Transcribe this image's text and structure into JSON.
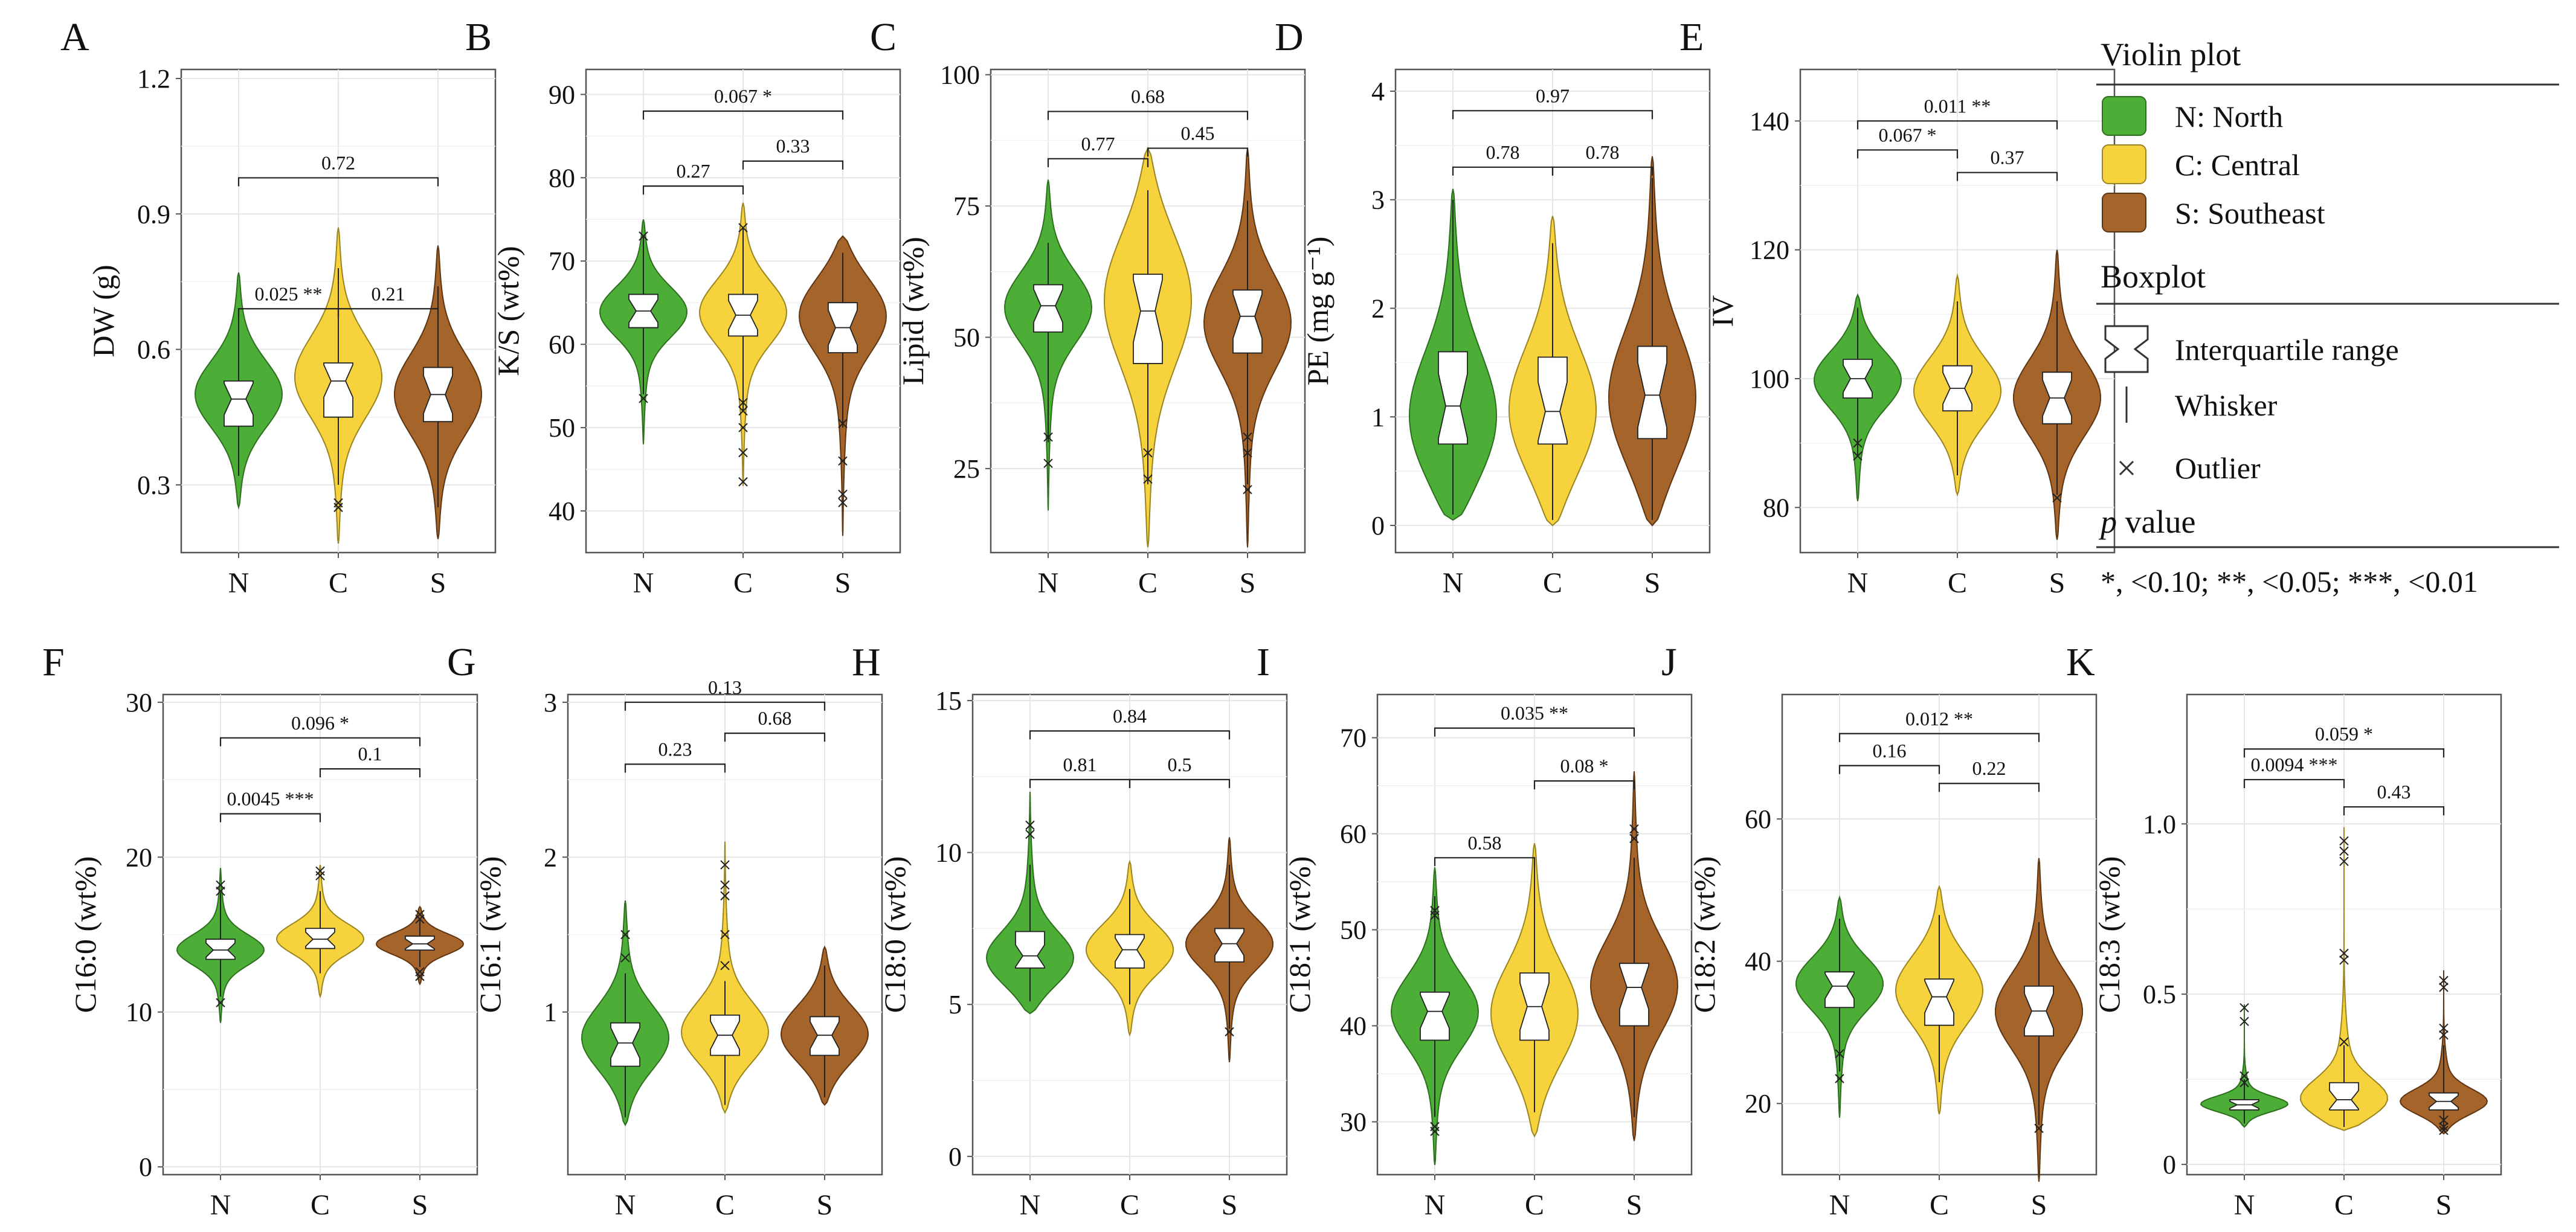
{
  "colors": {
    "N": "#4cae36",
    "C": "#f6d23d",
    "S": "#a5642a",
    "frame": "#555555",
    "grid": "#e6e6e6",
    "text": "#111111"
  },
  "legend": {
    "violin_title": "Violin plot",
    "groups": [
      {
        "key": "N",
        "label": "N: North"
      },
      {
        "key": "C",
        "label": "C: Central"
      },
      {
        "key": "S",
        "label": "S: Southeast"
      }
    ],
    "boxplot_title": "Boxplot",
    "box_items": [
      {
        "icon": "notched-box-icon",
        "label": "Interquartile range"
      },
      {
        "icon": "whisker-line-icon",
        "label": "Whisker"
      },
      {
        "icon": "outlier-cross-icon",
        "label": "Outlier"
      }
    ],
    "p_title_italic": "p",
    "p_title_rest": " value",
    "p_note": "*, <0.10; **, <0.05; ***, <0.01"
  },
  "chart_data": [
    {
      "panel": "A",
      "type": "violin",
      "ylabel": "DW (g)",
      "categories": [
        "N",
        "C",
        "S"
      ],
      "ylim": [
        0.15,
        1.22
      ],
      "yticks": [
        0.3,
        0.6,
        0.9,
        1.2
      ],
      "tick_labels": [
        "0.3",
        "0.6",
        "0.9",
        "1.2"
      ],
      "groups": [
        {
          "name": "N",
          "min": 0.25,
          "max": 0.77,
          "q1": 0.43,
          "median": 0.49,
          "q3": 0.53,
          "wlo": 0.32,
          "whi": 0.68,
          "mode": 0.5,
          "outliers": []
        },
        {
          "name": "C",
          "min": 0.17,
          "max": 0.87,
          "q1": 0.45,
          "median": 0.53,
          "q3": 0.57,
          "wlo": 0.3,
          "whi": 0.78,
          "mode": 0.54,
          "outliers": [
            0.26,
            0.25
          ]
        },
        {
          "name": "S",
          "min": 0.18,
          "max": 0.83,
          "q1": 0.44,
          "median": 0.5,
          "q3": 0.56,
          "wlo": 0.25,
          "whi": 0.74,
          "mode": 0.5,
          "outliers": []
        }
      ],
      "comparisons": [
        {
          "from": "N",
          "to": "C",
          "label": "0.025 **",
          "y": 0.69
        },
        {
          "from": "C",
          "to": "S",
          "label": "0.21",
          "y": 0.69
        },
        {
          "from": "N",
          "to": "S",
          "label": "0.72",
          "y": 0.98
        }
      ]
    },
    {
      "panel": "B",
      "type": "violin",
      "ylabel": "K/S (wt%)",
      "categories": [
        "N",
        "C",
        "S"
      ],
      "ylim": [
        35,
        93
      ],
      "yticks": [
        40,
        50,
        60,
        70,
        80,
        90
      ],
      "tick_labels": [
        "40",
        "50",
        "60",
        "70",
        "80",
        "90"
      ],
      "groups": [
        {
          "name": "N",
          "min": 48,
          "max": 75,
          "q1": 62,
          "median": 64,
          "q3": 66,
          "wlo": 54,
          "whi": 73,
          "mode": 64,
          "outliers": [
            73,
            53.5
          ]
        },
        {
          "name": "C",
          "min": 43,
          "max": 77,
          "q1": 61,
          "median": 63.5,
          "q3": 66,
          "wlo": 52,
          "whi": 74,
          "mode": 64,
          "outliers": [
            74,
            53,
            52,
            50,
            47,
            43.5
          ]
        },
        {
          "name": "S",
          "min": 37,
          "max": 73,
          "q1": 59,
          "median": 62,
          "q3": 65,
          "wlo": 50,
          "whi": 71,
          "mode": 64,
          "outliers": [
            50.5,
            46,
            42,
            41
          ]
        }
      ],
      "comparisons": [
        {
          "from": "N",
          "to": "C",
          "label": "0.27",
          "y": 79
        },
        {
          "from": "C",
          "to": "S",
          "label": "0.33",
          "y": 82
        },
        {
          "from": "N",
          "to": "S",
          "label": "0.067 *",
          "y": 88
        }
      ]
    },
    {
      "panel": "C",
      "type": "violin",
      "ylabel": "Lipid (wt%)",
      "categories": [
        "N",
        "C",
        "S"
      ],
      "ylim": [
        9,
        101
      ],
      "yticks": [
        25,
        50,
        75,
        100
      ],
      "tick_labels": [
        "25",
        "50",
        "75",
        "100"
      ],
      "groups": [
        {
          "name": "N",
          "min": 17,
          "max": 80,
          "q1": 51,
          "median": 56,
          "q3": 60,
          "wlo": 30,
          "whi": 68,
          "mode": 56,
          "outliers": [
            31,
            26
          ]
        },
        {
          "name": "C",
          "min": 10,
          "max": 86,
          "q1": 45,
          "median": 55,
          "q3": 62,
          "wlo": 22,
          "whi": 78,
          "mode": 58,
          "outliers": [
            28,
            23
          ]
        },
        {
          "name": "S",
          "min": 10,
          "max": 86,
          "q1": 47,
          "median": 54,
          "q3": 59,
          "wlo": 22,
          "whi": 76,
          "mode": 53,
          "outliers": [
            31,
            28,
            21
          ]
        }
      ],
      "comparisons": [
        {
          "from": "N",
          "to": "C",
          "label": "0.77",
          "y": 84
        },
        {
          "from": "C",
          "to": "S",
          "label": "0.45",
          "y": 86
        },
        {
          "from": "N",
          "to": "S",
          "label": "0.68",
          "y": 93
        }
      ]
    },
    {
      "panel": "D",
      "type": "violin",
      "ylabel": "PE (mg g⁻¹)",
      "categories": [
        "N",
        "C",
        "S"
      ],
      "ylim": [
        -0.25,
        4.2
      ],
      "yticks": [
        0,
        1,
        2,
        3,
        4
      ],
      "tick_labels": [
        "0",
        "1",
        "2",
        "3",
        "4"
      ],
      "groups": [
        {
          "name": "N",
          "min": 0.05,
          "max": 3.1,
          "q1": 0.75,
          "median": 1.1,
          "q3": 1.6,
          "wlo": 0.1,
          "whi": 3.0,
          "mode": 0.9,
          "outliers": []
        },
        {
          "name": "C",
          "min": 0.0,
          "max": 2.85,
          "q1": 0.75,
          "median": 1.05,
          "q3": 1.55,
          "wlo": 0.05,
          "whi": 2.6,
          "mode": 1.0,
          "outliers": []
        },
        {
          "name": "S",
          "min": 0.0,
          "max": 3.4,
          "q1": 0.8,
          "median": 1.2,
          "q3": 1.65,
          "wlo": 0.05,
          "whi": 3.2,
          "mode": 1.1,
          "outliers": []
        }
      ],
      "comparisons": [
        {
          "from": "N",
          "to": "C",
          "label": "0.78",
          "y": 3.3
        },
        {
          "from": "C",
          "to": "S",
          "label": "0.78",
          "y": 3.3
        },
        {
          "from": "N",
          "to": "S",
          "label": "0.97",
          "y": 3.82
        }
      ]
    },
    {
      "panel": "E",
      "type": "violin",
      "ylabel": "IV",
      "categories": [
        "N",
        "C",
        "S"
      ],
      "ylim": [
        73,
        148
      ],
      "yticks": [
        80,
        100,
        120,
        140
      ],
      "tick_labels": [
        "80",
        "100",
        "120",
        "140"
      ],
      "groups": [
        {
          "name": "N",
          "min": 81,
          "max": 113,
          "q1": 97,
          "median": 100,
          "q3": 103,
          "wlo": 88,
          "whi": 111,
          "mode": 100,
          "outliers": [
            90,
            88
          ]
        },
        {
          "name": "C",
          "min": 82,
          "max": 116,
          "q1": 95,
          "median": 98.5,
          "q3": 102,
          "wlo": 85,
          "whi": 112,
          "mode": 98,
          "outliers": []
        },
        {
          "name": "S",
          "min": 75,
          "max": 120,
          "q1": 93,
          "median": 97,
          "q3": 101,
          "wlo": 82,
          "whi": 112,
          "mode": 97,
          "outliers": [
            81.5
          ]
        }
      ],
      "comparisons": [
        {
          "from": "N",
          "to": "C",
          "label": "0.067 *",
          "y": 135.5
        },
        {
          "from": "C",
          "to": "S",
          "label": "0.37",
          "y": 132
        },
        {
          "from": "N",
          "to": "S",
          "label": "0.011 **",
          "y": 140
        }
      ]
    },
    {
      "panel": "F",
      "type": "violin",
      "ylabel": "C16:0 (wt%)",
      "categories": [
        "N",
        "C",
        "S"
      ],
      "ylim": [
        -0.5,
        30.5
      ],
      "yticks": [
        0,
        10,
        20,
        30
      ],
      "tick_labels": [
        "0",
        "10",
        "20",
        "30"
      ],
      "groups": [
        {
          "name": "N",
          "min": 9.3,
          "max": 19.3,
          "q1": 13.4,
          "median": 14.0,
          "q3": 14.7,
          "wlo": 11.0,
          "whi": 17.7,
          "mode": 14.0,
          "outliers": [
            18.2,
            17.8,
            10.6
          ]
        },
        {
          "name": "C",
          "min": 11.0,
          "max": 19.5,
          "q1": 14.1,
          "median": 14.7,
          "q3": 15.4,
          "wlo": 12.5,
          "whi": 17.8,
          "mode": 14.7,
          "outliers": [
            19.1,
            18.8
          ]
        },
        {
          "name": "S",
          "min": 11.8,
          "max": 16.8,
          "q1": 14.0,
          "median": 14.4,
          "q3": 14.9,
          "wlo": 12.9,
          "whi": 16.0,
          "mode": 14.4,
          "outliers": [
            16.3,
            16.0,
            12.6,
            12.3
          ]
        }
      ],
      "comparisons": [
        {
          "from": "N",
          "to": "C",
          "label": "0.0045 ***",
          "y": 22.8
        },
        {
          "from": "C",
          "to": "S",
          "label": "0.1",
          "y": 25.7
        },
        {
          "from": "N",
          "to": "S",
          "label": "0.096 *",
          "y": 27.7
        }
      ]
    },
    {
      "panel": "G",
      "type": "violin",
      "ylabel": "C16:1 (wt%)",
      "categories": [
        "N",
        "C",
        "S"
      ],
      "ylim": [
        -0.05,
        3.05
      ],
      "yticks": [
        1,
        2,
        3
      ],
      "tick_labels": [
        "1",
        "2",
        "3"
      ],
      "groups": [
        {
          "name": "N",
          "min": 0.27,
          "max": 1.72,
          "q1": 0.65,
          "median": 0.8,
          "q3": 0.93,
          "wlo": 0.32,
          "whi": 1.25,
          "mode": 0.82,
          "outliers": [
            1.5,
            1.35
          ]
        },
        {
          "name": "C",
          "min": 0.35,
          "max": 2.1,
          "q1": 0.72,
          "median": 0.85,
          "q3": 0.98,
          "wlo": 0.4,
          "whi": 1.2,
          "mode": 0.85,
          "outliers": [
            1.95,
            1.82,
            1.75,
            1.5,
            1.3
          ]
        },
        {
          "name": "S",
          "min": 0.4,
          "max": 1.42,
          "q1": 0.72,
          "median": 0.85,
          "q3": 0.97,
          "wlo": 0.45,
          "whi": 1.3,
          "mode": 0.85,
          "outliers": []
        }
      ],
      "comparisons": [
        {
          "from": "N",
          "to": "C",
          "label": "0.23",
          "y": 2.6
        },
        {
          "from": "C",
          "to": "S",
          "label": "0.68",
          "y": 2.8
        },
        {
          "from": "N",
          "to": "S",
          "label": "0.13",
          "y": 3.0
        }
      ]
    },
    {
      "panel": "H",
      "type": "violin",
      "ylabel": "C18:0 (wt%)",
      "categories": [
        "N",
        "C",
        "S"
      ],
      "ylim": [
        -0.6,
        15.2
      ],
      "yticks": [
        0,
        5,
        10,
        15
      ],
      "tick_labels": [
        "0",
        "5",
        "10",
        "15"
      ],
      "groups": [
        {
          "name": "N",
          "min": 4.7,
          "max": 12.0,
          "q1": 6.2,
          "median": 6.6,
          "q3": 7.4,
          "wlo": 5.1,
          "whi": 9.6,
          "mode": 6.4,
          "outliers": [
            10.9,
            10.6
          ]
        },
        {
          "name": "C",
          "min": 4.0,
          "max": 9.7,
          "q1": 6.2,
          "median": 6.8,
          "q3": 7.3,
          "wlo": 5.0,
          "whi": 8.8,
          "mode": 6.8,
          "outliers": []
        },
        {
          "name": "S",
          "min": 3.1,
          "max": 10.5,
          "q1": 6.4,
          "median": 7.0,
          "q3": 7.5,
          "wlo": 4.2,
          "whi": 9.6,
          "mode": 7.0,
          "outliers": [
            4.1
          ]
        }
      ],
      "comparisons": [
        {
          "from": "N",
          "to": "C",
          "label": "0.81",
          "y": 12.4
        },
        {
          "from": "C",
          "to": "S",
          "label": "0.5",
          "y": 12.4
        },
        {
          "from": "N",
          "to": "S",
          "label": "0.84",
          "y": 14.0
        }
      ]
    },
    {
      "panel": "I",
      "type": "violin",
      "ylabel": "C18:1 (wt%)",
      "categories": [
        "N",
        "C",
        "S"
      ],
      "ylim": [
        24.5,
        74.5
      ],
      "yticks": [
        30,
        40,
        50,
        60,
        70
      ],
      "tick_labels": [
        "30",
        "40",
        "50",
        "60",
        "70"
      ],
      "groups": [
        {
          "name": "N",
          "min": 25.5,
          "max": 56.5,
          "q1": 38.5,
          "median": 41.5,
          "q3": 43.5,
          "wlo": 30.5,
          "whi": 53.5,
          "mode": 41.5,
          "outliers": [
            52,
            51.5,
            29.5,
            29
          ]
        },
        {
          "name": "C",
          "min": 28.5,
          "max": 59,
          "q1": 38.5,
          "median": 42,
          "q3": 45.5,
          "wlo": 31,
          "whi": 57,
          "mode": 41,
          "outliers": []
        },
        {
          "name": "S",
          "min": 28,
          "max": 66.5,
          "q1": 40,
          "median": 44,
          "q3": 46.5,
          "wlo": 30.5,
          "whi": 57.5,
          "mode": 44,
          "outliers": [
            60.5,
            59.5
          ]
        }
      ],
      "comparisons": [
        {
          "from": "N",
          "to": "C",
          "label": "0.58",
          "y": 57.5
        },
        {
          "from": "C",
          "to": "S",
          "label": "0.08 *",
          "y": 65.5
        },
        {
          "from": "N",
          "to": "S",
          "label": "0.035 **",
          "y": 71
        }
      ]
    },
    {
      "panel": "J",
      "type": "violin",
      "ylabel": "C18:2 (wt%)",
      "categories": [
        "N",
        "C",
        "S"
      ],
      "ylim": [
        10,
        77.5
      ],
      "yticks": [
        20,
        40,
        60
      ],
      "tick_labels": [
        "20",
        "40",
        "60"
      ],
      "groups": [
        {
          "name": "N",
          "min": 18,
          "max": 49,
          "q1": 33.5,
          "median": 36.5,
          "q3": 38.5,
          "wlo": 24.5,
          "whi": 46,
          "mode": 37,
          "outliers": [
            23.5,
            27
          ]
        },
        {
          "name": "C",
          "min": 18.5,
          "max": 50.5,
          "q1": 31,
          "median": 35,
          "q3": 37.5,
          "wlo": 23,
          "whi": 46.5,
          "mode": 36,
          "outliers": []
        },
        {
          "name": "S",
          "min": 9,
          "max": 54.5,
          "q1": 29.5,
          "median": 33,
          "q3": 36.5,
          "wlo": 17,
          "whi": 45.5,
          "mode": 33,
          "outliers": [
            16.5
          ]
        }
      ],
      "comparisons": [
        {
          "from": "N",
          "to": "C",
          "label": "0.16",
          "y": 67.5
        },
        {
          "from": "C",
          "to": "S",
          "label": "0.22",
          "y": 65
        },
        {
          "from": "N",
          "to": "S",
          "label": "0.012 **",
          "y": 72
        }
      ]
    },
    {
      "panel": "K",
      "type": "violin",
      "ylabel": "C18:3 (wt%)",
      "categories": [
        "N",
        "C",
        "S"
      ],
      "ylim": [
        -0.03,
        1.38
      ],
      "yticks": [
        0,
        0.5,
        1.0
      ],
      "tick_labels": [
        "0",
        "0.5",
        "1.0"
      ],
      "groups": [
        {
          "name": "N",
          "min": 0.11,
          "max": 0.47,
          "q1": 0.16,
          "median": 0.175,
          "q3": 0.19,
          "wlo": 0.12,
          "whi": 0.25,
          "mode": 0.175,
          "outliers": [
            0.46,
            0.42,
            0.26,
            0.24
          ]
        },
        {
          "name": "C",
          "min": 0.1,
          "max": 0.99,
          "q1": 0.16,
          "median": 0.19,
          "q3": 0.24,
          "wlo": 0.11,
          "whi": 0.35,
          "mode": 0.18,
          "outliers": [
            0.95,
            0.92,
            0.89,
            0.62,
            0.6,
            0.36
          ]
        },
        {
          "name": "S",
          "min": 0.09,
          "max": 0.57,
          "q1": 0.16,
          "median": 0.185,
          "q3": 0.21,
          "wlo": 0.1,
          "whi": 0.35,
          "mode": 0.18,
          "outliers": [
            0.54,
            0.52,
            0.4,
            0.38,
            0.13,
            0.11,
            0.1
          ]
        }
      ],
      "comparisons": [
        {
          "from": "N",
          "to": "C",
          "label": "0.0094 ***",
          "y": 1.13
        },
        {
          "from": "C",
          "to": "S",
          "label": "0.43",
          "y": 1.05
        },
        {
          "from": "N",
          "to": "S",
          "label": "0.059 *",
          "y": 1.22
        }
      ]
    }
  ]
}
